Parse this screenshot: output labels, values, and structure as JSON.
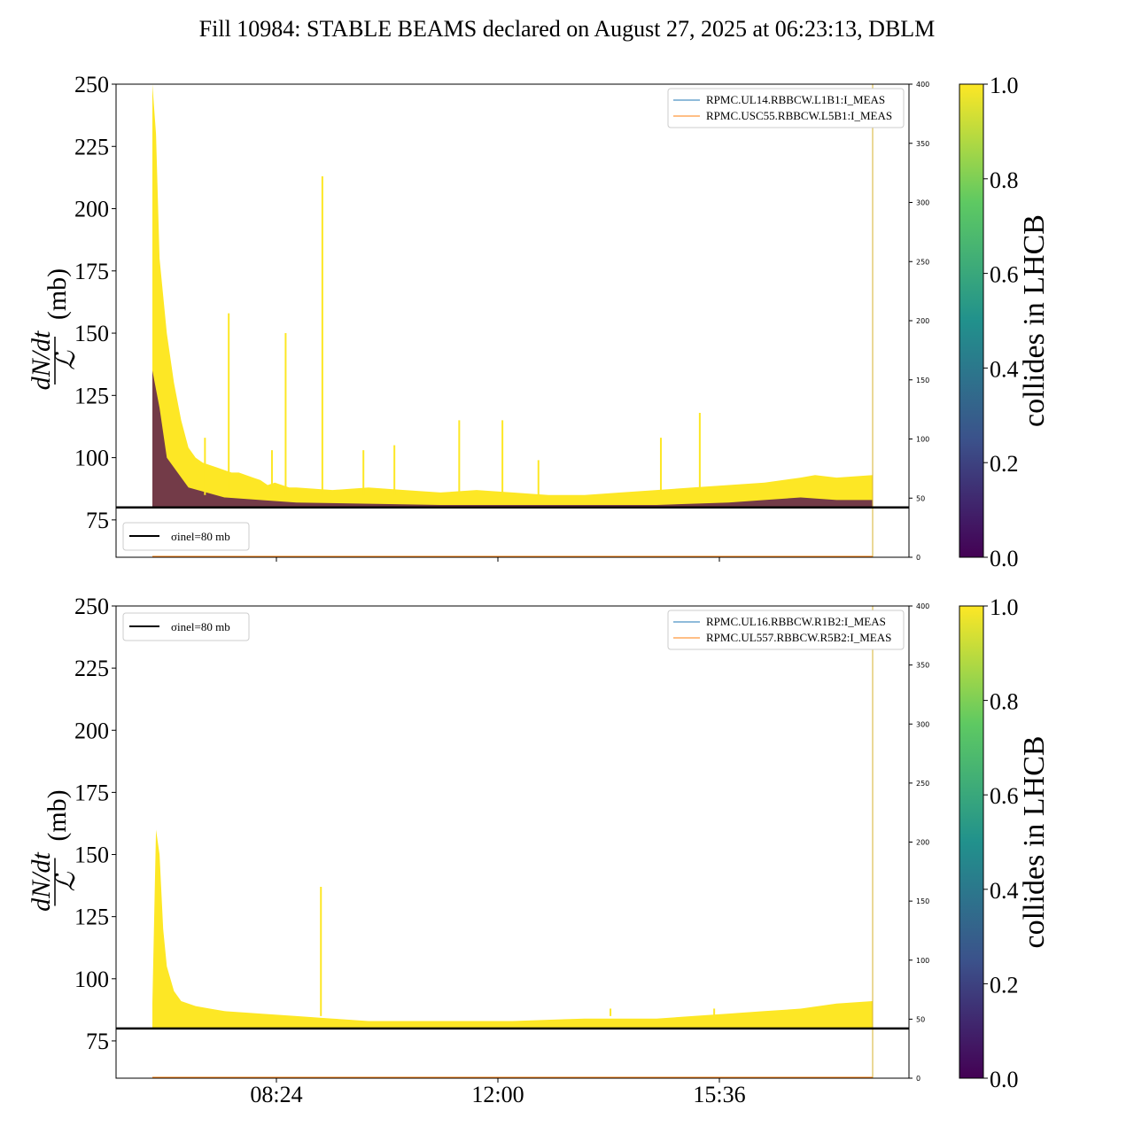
{
  "chart_data": {
    "title": "Fill 10984: STABLE BEAMS declared on August 27, 2025 at 06:23:13, DBLM",
    "type": "line",
    "shared_x_ticks": [
      "08:24",
      "12:00",
      "15:36"
    ],
    "panels": [
      {
        "id": "top",
        "ylabel_num": "dN/dt",
        "ylabel_den": "ℒ",
        "ylabel_unit": "(mb)",
        "ylim": [
          60,
          250
        ],
        "yticks": [
          75,
          100,
          125,
          150,
          175,
          200,
          225,
          250
        ],
        "y2lim": [
          0,
          400
        ],
        "y2ticks": [
          0,
          50,
          100,
          150,
          200,
          250,
          300,
          350,
          400
        ],
        "reference_line": {
          "value": 80,
          "label": "σinel=80 mb"
        },
        "legend_series": [
          "RPMC.UL14.RBBCW.L1B1:I_MEAS",
          "RPMC.USC55.RBBCW.L5B1:I_MEAS"
        ],
        "series_colors": [
          "#1f77b4",
          "#ff7f0e"
        ],
        "envelope": {
          "x": [
            0.0,
            0.5,
            1.0,
            2.0,
            3.0,
            4.0,
            5.0,
            6.0,
            7.0,
            8.0,
            9.0,
            10.0,
            11.0,
            12.0,
            13.0,
            14.0,
            15.0,
            16.0,
            17.0,
            18.0,
            19.0,
            20.0,
            25.0,
            30.0,
            35.0,
            40.0,
            45.0,
            50.0,
            55.0,
            60.0,
            65.0,
            70.0,
            75.0,
            80.0,
            85.0,
            90.0,
            92.0,
            95.0,
            100.0
          ],
          "upper": [
            250,
            230,
            180,
            150,
            130,
            115,
            104,
            100,
            98,
            97,
            96,
            95,
            94,
            94,
            93,
            92,
            91,
            89,
            90,
            89,
            88,
            88,
            87,
            88,
            87,
            86,
            87,
            86,
            85,
            85,
            86,
            87,
            88,
            89,
            90,
            92,
            93,
            92,
            93
          ],
          "lower": [
            80,
            80,
            80,
            80,
            80,
            80,
            80,
            80,
            80,
            80,
            80,
            80,
            80,
            80,
            80,
            80,
            80,
            80,
            80,
            80,
            80,
            80,
            80,
            80,
            80,
            80,
            80,
            80,
            80,
            80,
            80,
            80,
            80,
            80,
            80,
            80,
            80,
            80,
            80
          ]
        },
        "low_collides_band": {
          "x": [
            0.0,
            1.0,
            2.0,
            5.0,
            10.0,
            15.0,
            20.0,
            40.0,
            70.0,
            80.0,
            85.0,
            90.0,
            95.0,
            100.0
          ],
          "upper": [
            135,
            120,
            100,
            88,
            84,
            83,
            82,
            81,
            81,
            82,
            83,
            84,
            83,
            83
          ]
        },
        "spikes": [
          {
            "x": 7.3,
            "y": 108
          },
          {
            "x": 10.6,
            "y": 158
          },
          {
            "x": 16.6,
            "y": 103
          },
          {
            "x": 18.5,
            "y": 150
          },
          {
            "x": 23.6,
            "y": 213
          },
          {
            "x": 29.3,
            "y": 103
          },
          {
            "x": 33.6,
            "y": 105
          },
          {
            "x": 42.6,
            "y": 115
          },
          {
            "x": 48.6,
            "y": 115
          },
          {
            "x": 53.6,
            "y": 99
          },
          {
            "x": 70.6,
            "y": 108
          },
          {
            "x": 76.0,
            "y": 118
          }
        ]
      },
      {
        "id": "bottom",
        "ylabel_num": "dN/dt",
        "ylabel_den": "ℒ",
        "ylabel_unit": "(mb)",
        "ylim": [
          60,
          250
        ],
        "yticks": [
          75,
          100,
          125,
          150,
          175,
          200,
          225,
          250
        ],
        "y2lim": [
          0,
          400
        ],
        "y2ticks": [
          0,
          50,
          100,
          150,
          200,
          250,
          300,
          350,
          400
        ],
        "reference_line": {
          "value": 80,
          "label": "σinel=80 mb"
        },
        "legend_series": [
          "RPMC.UL16.RBBCW.R1B2:I_MEAS",
          "RPMC.UL557.RBBCW.R5B2:I_MEAS"
        ],
        "series_colors": [
          "#1f77b4",
          "#ff7f0e"
        ],
        "envelope": {
          "x": [
            0.0,
            0.5,
            1.0,
            1.5,
            2.0,
            3.0,
            4.0,
            6.0,
            8.0,
            10.0,
            15.0,
            20.0,
            25.0,
            30.0,
            40.0,
            50.0,
            60.0,
            70.0,
            75.0,
            80.0,
            85.0,
            90.0,
            95.0,
            100.0
          ],
          "upper": [
            90,
            160,
            150,
            120,
            105,
            95,
            91,
            89,
            88,
            87,
            86,
            85,
            84,
            83,
            83,
            83,
            84,
            84,
            85,
            86,
            87,
            88,
            90,
            91
          ],
          "lower": [
            80,
            80,
            80,
            80,
            80,
            80,
            80,
            80,
            80,
            80,
            80,
            80,
            80,
            80,
            80,
            80,
            80,
            80,
            80,
            80,
            80,
            80,
            80,
            80
          ]
        },
        "spikes": [
          {
            "x": 23.4,
            "y": 137
          },
          {
            "x": 63.6,
            "y": 88
          },
          {
            "x": 78.0,
            "y": 88
          }
        ]
      }
    ],
    "colorbar": {
      "label": "collides in LHCB",
      "ticks": [
        "0.0",
        "0.2",
        "0.4",
        "0.6",
        "0.8",
        "1.0"
      ],
      "colors": [
        "#440154",
        "#3b528b",
        "#21918c",
        "#5ec962",
        "#fde725"
      ]
    },
    "colors": {
      "high": "#fde725",
      "low": "#440154",
      "refline": "#000000"
    }
  }
}
